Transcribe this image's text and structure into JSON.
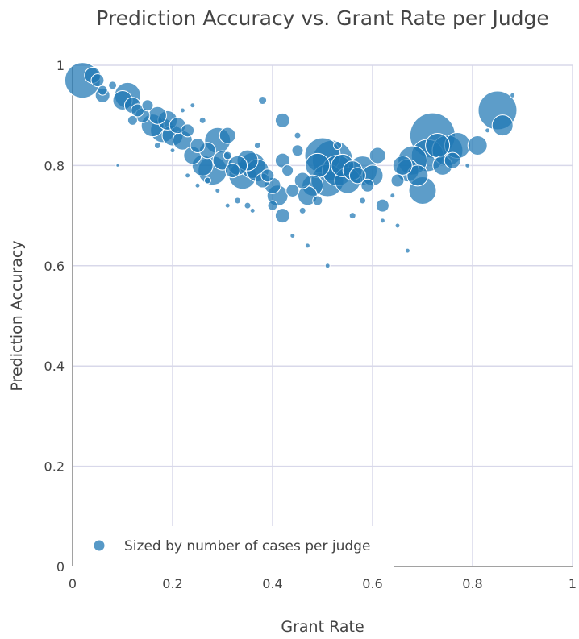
{
  "chart_data": {
    "type": "scatter",
    "title": "Prediction Accuracy vs. Grant Rate per Judge",
    "xlabel": "Grant Rate",
    "ylabel": "Prediction Accuracy",
    "xlim": [
      0,
      1
    ],
    "ylim": [
      0,
      1
    ],
    "xticks": [
      "0",
      "0.2",
      "0.4",
      "0.6",
      "0.8",
      "1"
    ],
    "yticks": [
      "0",
      "0.2",
      "0.4",
      "0.6",
      "0.8",
      "1"
    ],
    "grid": true,
    "legend": {
      "position": "bottom-left",
      "label": "Sized by number of cases per judge"
    },
    "marker_color": "#1f77b4",
    "series": [
      {
        "name": "Sized by number of cases per judge",
        "points": [
          {
            "x": 0.02,
            "y": 0.97,
            "size": 22
          },
          {
            "x": 0.04,
            "y": 0.98,
            "size": 10
          },
          {
            "x": 0.05,
            "y": 0.97,
            "size": 8
          },
          {
            "x": 0.06,
            "y": 0.95,
            "size": 6
          },
          {
            "x": 0.06,
            "y": 0.94,
            "size": 9
          },
          {
            "x": 0.08,
            "y": 0.96,
            "size": 5
          },
          {
            "x": 0.1,
            "y": 0.93,
            "size": 12
          },
          {
            "x": 0.11,
            "y": 0.94,
            "size": 16
          },
          {
            "x": 0.12,
            "y": 0.92,
            "size": 10
          },
          {
            "x": 0.13,
            "y": 0.91,
            "size": 8
          },
          {
            "x": 0.12,
            "y": 0.89,
            "size": 6
          },
          {
            "x": 0.14,
            "y": 0.9,
            "size": 9
          },
          {
            "x": 0.15,
            "y": 0.92,
            "size": 7
          },
          {
            "x": 0.16,
            "y": 0.88,
            "size": 14
          },
          {
            "x": 0.17,
            "y": 0.9,
            "size": 11
          },
          {
            "x": 0.18,
            "y": 0.87,
            "size": 15
          },
          {
            "x": 0.19,
            "y": 0.89,
            "size": 12
          },
          {
            "x": 0.2,
            "y": 0.86,
            "size": 13
          },
          {
            "x": 0.21,
            "y": 0.88,
            "size": 10
          },
          {
            "x": 0.22,
            "y": 0.85,
            "size": 12
          },
          {
            "x": 0.23,
            "y": 0.87,
            "size": 8
          },
          {
            "x": 0.24,
            "y": 0.82,
            "size": 11
          },
          {
            "x": 0.25,
            "y": 0.84,
            "size": 9
          },
          {
            "x": 0.26,
            "y": 0.8,
            "size": 13
          },
          {
            "x": 0.27,
            "y": 0.83,
            "size": 10
          },
          {
            "x": 0.28,
            "y": 0.79,
            "size": 18
          },
          {
            "x": 0.29,
            "y": 0.85,
            "size": 16
          },
          {
            "x": 0.3,
            "y": 0.81,
            "size": 12
          },
          {
            "x": 0.31,
            "y": 0.86,
            "size": 10
          },
          {
            "x": 0.32,
            "y": 0.79,
            "size": 9
          },
          {
            "x": 0.33,
            "y": 0.8,
            "size": 12
          },
          {
            "x": 0.34,
            "y": 0.78,
            "size": 17
          },
          {
            "x": 0.35,
            "y": 0.81,
            "size": 13
          },
          {
            "x": 0.36,
            "y": 0.8,
            "size": 16
          },
          {
            "x": 0.37,
            "y": 0.79,
            "size": 14
          },
          {
            "x": 0.38,
            "y": 0.77,
            "size": 9
          },
          {
            "x": 0.39,
            "y": 0.78,
            "size": 8
          },
          {
            "x": 0.4,
            "y": 0.76,
            "size": 10
          },
          {
            "x": 0.41,
            "y": 0.74,
            "size": 13
          },
          {
            "x": 0.42,
            "y": 0.81,
            "size": 9
          },
          {
            "x": 0.43,
            "y": 0.79,
            "size": 7
          },
          {
            "x": 0.44,
            "y": 0.75,
            "size": 8
          },
          {
            "x": 0.45,
            "y": 0.83,
            "size": 7
          },
          {
            "x": 0.46,
            "y": 0.77,
            "size": 10
          },
          {
            "x": 0.47,
            "y": 0.74,
            "size": 12
          },
          {
            "x": 0.48,
            "y": 0.76,
            "size": 13
          },
          {
            "x": 0.49,
            "y": 0.8,
            "size": 15
          },
          {
            "x": 0.5,
            "y": 0.82,
            "size": 22
          },
          {
            "x": 0.51,
            "y": 0.77,
            "size": 20
          },
          {
            "x": 0.52,
            "y": 0.81,
            "size": 25
          },
          {
            "x": 0.53,
            "y": 0.79,
            "size": 19
          },
          {
            "x": 0.54,
            "y": 0.8,
            "size": 14
          },
          {
            "x": 0.55,
            "y": 0.77,
            "size": 16
          },
          {
            "x": 0.56,
            "y": 0.79,
            "size": 12
          },
          {
            "x": 0.57,
            "y": 0.78,
            "size": 10
          },
          {
            "x": 0.58,
            "y": 0.79,
            "size": 18
          },
          {
            "x": 0.59,
            "y": 0.76,
            "size": 8
          },
          {
            "x": 0.6,
            "y": 0.78,
            "size": 13
          },
          {
            "x": 0.61,
            "y": 0.82,
            "size": 10
          },
          {
            "x": 0.62,
            "y": 0.72,
            "size": 8
          },
          {
            "x": 0.65,
            "y": 0.77,
            "size": 8
          },
          {
            "x": 0.66,
            "y": 0.8,
            "size": 12
          },
          {
            "x": 0.67,
            "y": 0.79,
            "size": 14
          },
          {
            "x": 0.68,
            "y": 0.81,
            "size": 18
          },
          {
            "x": 0.69,
            "y": 0.78,
            "size": 13
          },
          {
            "x": 0.7,
            "y": 0.75,
            "size": 17
          },
          {
            "x": 0.71,
            "y": 0.82,
            "size": 20
          },
          {
            "x": 0.72,
            "y": 0.86,
            "size": 28
          },
          {
            "x": 0.73,
            "y": 0.84,
            "size": 15
          },
          {
            "x": 0.74,
            "y": 0.8,
            "size": 12
          },
          {
            "x": 0.75,
            "y": 0.83,
            "size": 19
          },
          {
            "x": 0.76,
            "y": 0.81,
            "size": 10
          },
          {
            "x": 0.77,
            "y": 0.84,
            "size": 16
          },
          {
            "x": 0.81,
            "y": 0.84,
            "size": 12
          },
          {
            "x": 0.85,
            "y": 0.91,
            "size": 24
          },
          {
            "x": 0.86,
            "y": 0.88,
            "size": 13
          },
          {
            "x": 0.33,
            "y": 0.73,
            "size": 4
          },
          {
            "x": 0.35,
            "y": 0.72,
            "size": 4
          },
          {
            "x": 0.36,
            "y": 0.71,
            "size": 3
          },
          {
            "x": 0.38,
            "y": 0.93,
            "size": 5
          },
          {
            "x": 0.42,
            "y": 0.89,
            "size": 9
          },
          {
            "x": 0.45,
            "y": 0.86,
            "size": 4
          },
          {
            "x": 0.4,
            "y": 0.72,
            "size": 6
          },
          {
            "x": 0.42,
            "y": 0.7,
            "size": 9
          },
          {
            "x": 0.44,
            "y": 0.66,
            "size": 3
          },
          {
            "x": 0.47,
            "y": 0.64,
            "size": 3
          },
          {
            "x": 0.51,
            "y": 0.6,
            "size": 3
          },
          {
            "x": 0.56,
            "y": 0.7,
            "size": 4
          },
          {
            "x": 0.65,
            "y": 0.68,
            "size": 3
          },
          {
            "x": 0.67,
            "y": 0.63,
            "size": 3
          },
          {
            "x": 0.62,
            "y": 0.69,
            "size": 3
          },
          {
            "x": 0.29,
            "y": 0.75,
            "size": 3
          },
          {
            "x": 0.31,
            "y": 0.72,
            "size": 3
          },
          {
            "x": 0.25,
            "y": 0.76,
            "size": 3
          },
          {
            "x": 0.09,
            "y": 0.8,
            "size": 2
          },
          {
            "x": 0.17,
            "y": 0.84,
            "size": 4
          },
          {
            "x": 0.2,
            "y": 0.83,
            "size": 3
          },
          {
            "x": 0.23,
            "y": 0.78,
            "size": 3
          },
          {
            "x": 0.27,
            "y": 0.77,
            "size": 4
          },
          {
            "x": 0.31,
            "y": 0.82,
            "size": 5
          },
          {
            "x": 0.37,
            "y": 0.84,
            "size": 4
          },
          {
            "x": 0.53,
            "y": 0.84,
            "size": 5
          },
          {
            "x": 0.49,
            "y": 0.73,
            "size": 6
          },
          {
            "x": 0.46,
            "y": 0.71,
            "size": 4
          },
          {
            "x": 0.64,
            "y": 0.74,
            "size": 3
          },
          {
            "x": 0.58,
            "y": 0.73,
            "size": 4
          },
          {
            "x": 0.79,
            "y": 0.8,
            "size": 3
          },
          {
            "x": 0.83,
            "y": 0.87,
            "size": 3
          },
          {
            "x": 0.88,
            "y": 0.94,
            "size": 3
          },
          {
            "x": 0.24,
            "y": 0.92,
            "size": 3
          },
          {
            "x": 0.26,
            "y": 0.89,
            "size": 4
          },
          {
            "x": 0.22,
            "y": 0.91,
            "size": 3
          }
        ]
      }
    ]
  }
}
